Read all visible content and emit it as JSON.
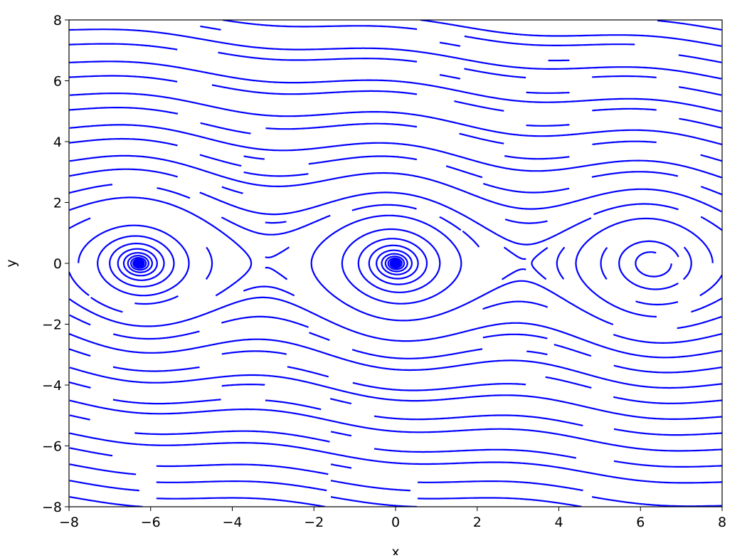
{
  "chart_data": {
    "type": "line",
    "subtype": "streamplot",
    "title": "",
    "xlabel": "x",
    "ylabel": "y",
    "xlim": [
      -8,
      8
    ],
    "ylim": [
      -8,
      8
    ],
    "xticks": [
      "−8",
      "−6",
      "−4",
      "−2",
      "0",
      "2",
      "4",
      "6",
      "8"
    ],
    "yticks": [
      "−8",
      "−6",
      "−4",
      "−2",
      "0",
      "2",
      "4",
      "6",
      "8"
    ],
    "xtick_values": [
      -8,
      -6,
      -4,
      -2,
      0,
      2,
      4,
      6,
      8
    ],
    "ytick_values": [
      -8,
      -6,
      -4,
      -2,
      0,
      2,
      4,
      6,
      8
    ],
    "field": {
      "dx": "y",
      "dy": "-sin(x) - 0.1*y",
      "damping": 0.1
    },
    "grid": false,
    "legend": "none",
    "line_color": "#0000ff"
  }
}
